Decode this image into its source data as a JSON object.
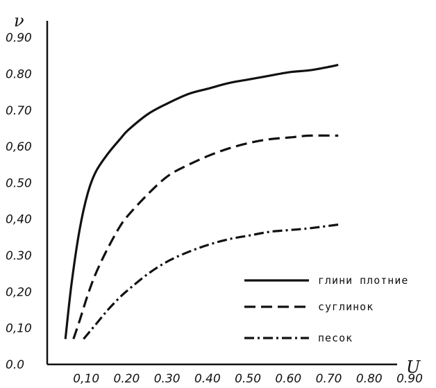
{
  "chart_data": {
    "type": "line",
    "xlabel": "U",
    "ylabel": "ν",
    "xlim": [
      0.0,
      0.9
    ],
    "ylim": [
      0.0,
      0.95
    ],
    "x_ticks": [
      "0,10",
      "0.20",
      "0.30",
      "0.40",
      "0.50",
      "0.60",
      "0.70",
      "0.80",
      "0.90"
    ],
    "x_tick_values": [
      0.1,
      0.2,
      0.3,
      0.4,
      0.5,
      0.6,
      0.7,
      0.8,
      0.9
    ],
    "y_ticks": [
      "0.0",
      "0,10",
      "0,20",
      "0.30",
      "0,40",
      "0.50",
      "0,60",
      "0.70",
      "0.80",
      "0.90"
    ],
    "y_tick_values": [
      0.0,
      0.1,
      0.2,
      0.3,
      0.4,
      0.5,
      0.6,
      0.7,
      0.8,
      0.9
    ],
    "grid": false,
    "legend_position": "bottom-right",
    "series": [
      {
        "name": "глини плотние",
        "style": "solid",
        "x": [
          0.045,
          0.06,
          0.08,
          0.1,
          0.12,
          0.15,
          0.18,
          0.2,
          0.25,
          0.3,
          0.35,
          0.4,
          0.45,
          0.5,
          0.55,
          0.6,
          0.65,
          0.7,
          0.72
        ],
        "y": [
          0.07,
          0.22,
          0.37,
          0.47,
          0.53,
          0.58,
          0.62,
          0.645,
          0.69,
          0.72,
          0.745,
          0.76,
          0.775,
          0.785,
          0.795,
          0.805,
          0.81,
          0.82,
          0.825
        ]
      },
      {
        "name": "суглинок",
        "style": "dashed",
        "x": [
          0.065,
          0.08,
          0.1,
          0.12,
          0.15,
          0.18,
          0.2,
          0.25,
          0.3,
          0.35,
          0.4,
          0.45,
          0.5,
          0.55,
          0.6,
          0.65,
          0.72
        ],
        "y": [
          0.07,
          0.12,
          0.19,
          0.25,
          0.32,
          0.38,
          0.41,
          0.47,
          0.52,
          0.55,
          0.575,
          0.595,
          0.61,
          0.62,
          0.625,
          0.63,
          0.63
        ]
      },
      {
        "name": "песок",
        "style": "dashdot",
        "x": [
          0.09,
          0.12,
          0.15,
          0.18,
          0.2,
          0.25,
          0.3,
          0.35,
          0.4,
          0.45,
          0.5,
          0.55,
          0.6,
          0.65,
          0.72
        ],
        "y": [
          0.07,
          0.11,
          0.15,
          0.185,
          0.205,
          0.25,
          0.285,
          0.31,
          0.33,
          0.345,
          0.355,
          0.365,
          0.37,
          0.375,
          0.385
        ]
      }
    ]
  },
  "colors": {
    "ink": "#111111",
    "background": "#ffffff"
  }
}
